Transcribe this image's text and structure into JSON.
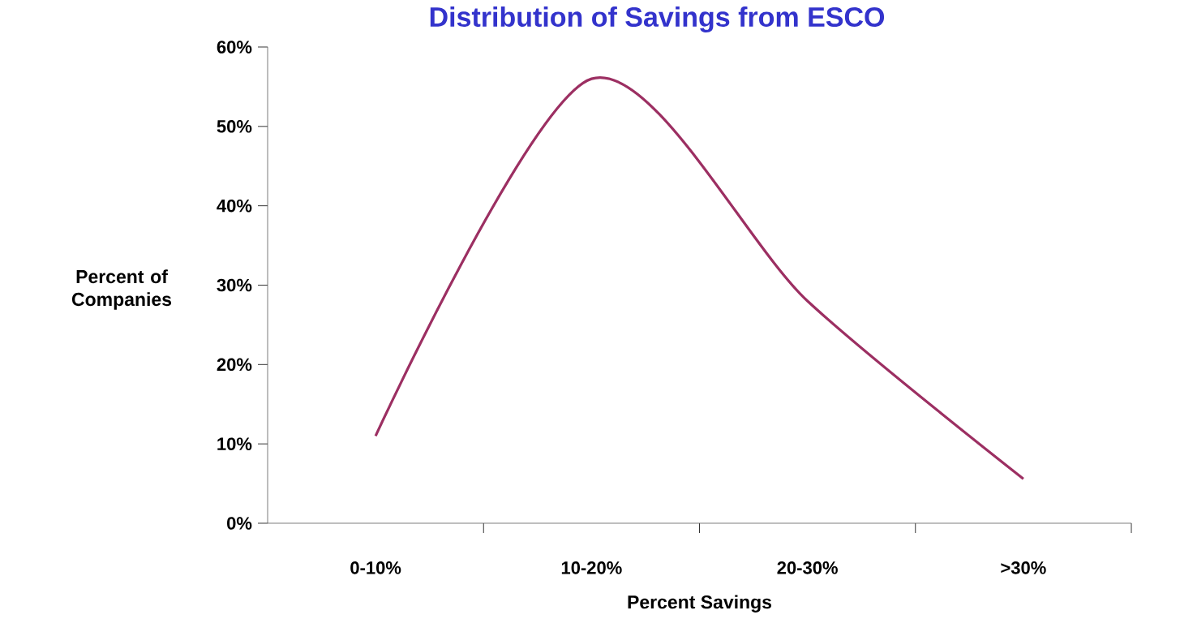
{
  "chart_data": {
    "type": "line",
    "title": "Distribution of Savings from ESCO",
    "xlabel": "Percent Savings",
    "ylabel": "Percent of Companies",
    "categories": [
      "0-10%",
      "10-20%",
      "20-30%",
      ">30%"
    ],
    "values": [
      11,
      56,
      28,
      5.6
    ],
    "color": "#9c2f62",
    "ylim": [
      0,
      60
    ],
    "yticks": [
      {
        "value": 0,
        "label": "0%"
      },
      {
        "value": 10,
        "label": "10%"
      },
      {
        "value": 20,
        "label": "20%"
      },
      {
        "value": 30,
        "label": "30%"
      },
      {
        "value": 40,
        "label": "40%"
      },
      {
        "value": 50,
        "label": "50%"
      },
      {
        "value": 60,
        "label": "60%"
      }
    ],
    "marker": "none"
  }
}
